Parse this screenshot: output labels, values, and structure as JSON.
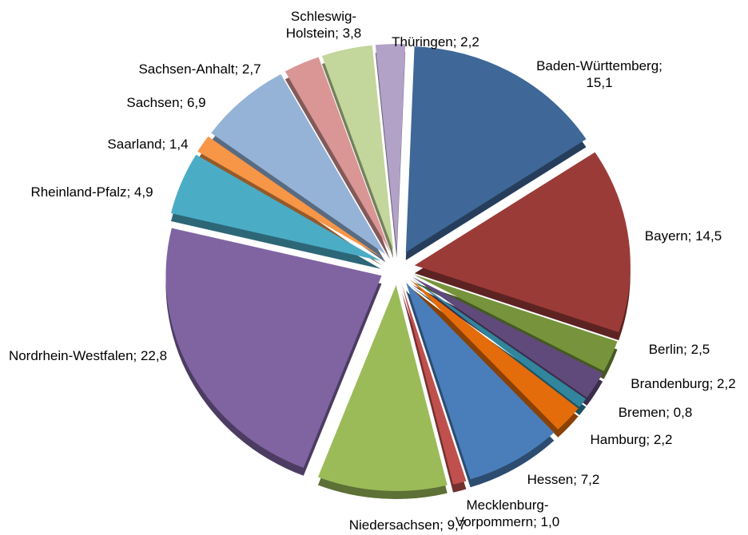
{
  "chart_data": {
    "type": "pie",
    "labels": [
      "Baden-Württemberg; 15,1",
      "Bayern; 14,5",
      "Berlin; 2,5",
      "Brandenburg; 2,2",
      "Bremen; 0,8",
      "Hamburg; 2,2",
      "Hessen; 7,2",
      "Mecklenburg-Vorpommern; 1,0",
      "Niedersachsen; 9,7",
      "Nordrhein-Westfalen; 22,8",
      "Rheinland-Pfalz; 4,9",
      "Saarland; 1,4",
      "Sachsen; 6,9",
      "Sachsen-Anhalt; 2,7",
      "Schleswig-Holstein; 3,8",
      "Thüringen; 2,2"
    ],
    "values": [
      15.1,
      14.5,
      2.5,
      2.2,
      0.8,
      2.2,
      7.2,
      1.0,
      9.7,
      22.8,
      4.9,
      1.4,
      6.9,
      2.7,
      3.8,
      2.2
    ],
    "colors": [
      "#3f6797",
      "#9b3b38",
      "#77933c",
      "#604a7b",
      "#31859c",
      "#e46c0a",
      "#4a7ebb",
      "#c0504d",
      "#9bbb59",
      "#8064a2",
      "#4bacc6",
      "#f79646",
      "#95b3d7",
      "#d99694",
      "#c3d69b",
      "#b3a2c7"
    ]
  }
}
